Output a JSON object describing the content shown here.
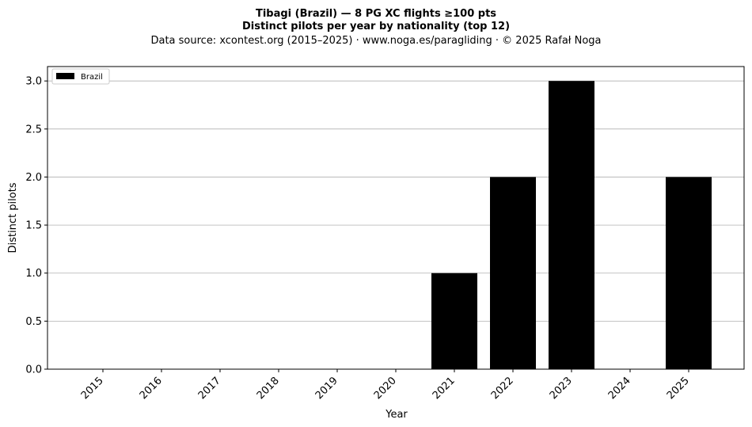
{
  "chart_data": {
    "type": "bar",
    "title": "Tibagi (Brazil)  —  8 PG XC flights ≥100 pts",
    "subtitle": "Distinct pilots per year by nationality (top 12)",
    "source": "Data source: xcontest.org (2015–2025)  ·  www.noga.es/paragliding  ·  © 2025 Rafał Noga",
    "xlabel": "Year",
    "ylabel": "Distinct pilots",
    "categories": [
      "2015",
      "2016",
      "2017",
      "2018",
      "2019",
      "2020",
      "2021",
      "2022",
      "2023",
      "2024",
      "2025"
    ],
    "series": [
      {
        "name": "Brazil",
        "color": "#000000",
        "values": [
          0,
          0,
          0,
          0,
          0,
          0,
          1,
          2,
          3,
          0,
          2
        ]
      }
    ],
    "ylim": [
      0,
      3.15
    ],
    "yticks": [
      0.0,
      0.5,
      1.0,
      1.5,
      2.0,
      2.5,
      3.0
    ],
    "ytick_labels": [
      "0.0",
      "0.5",
      "1.0",
      "1.5",
      "2.0",
      "2.5",
      "3.0"
    ],
    "grid": "y",
    "legend_position": "upper-left"
  }
}
